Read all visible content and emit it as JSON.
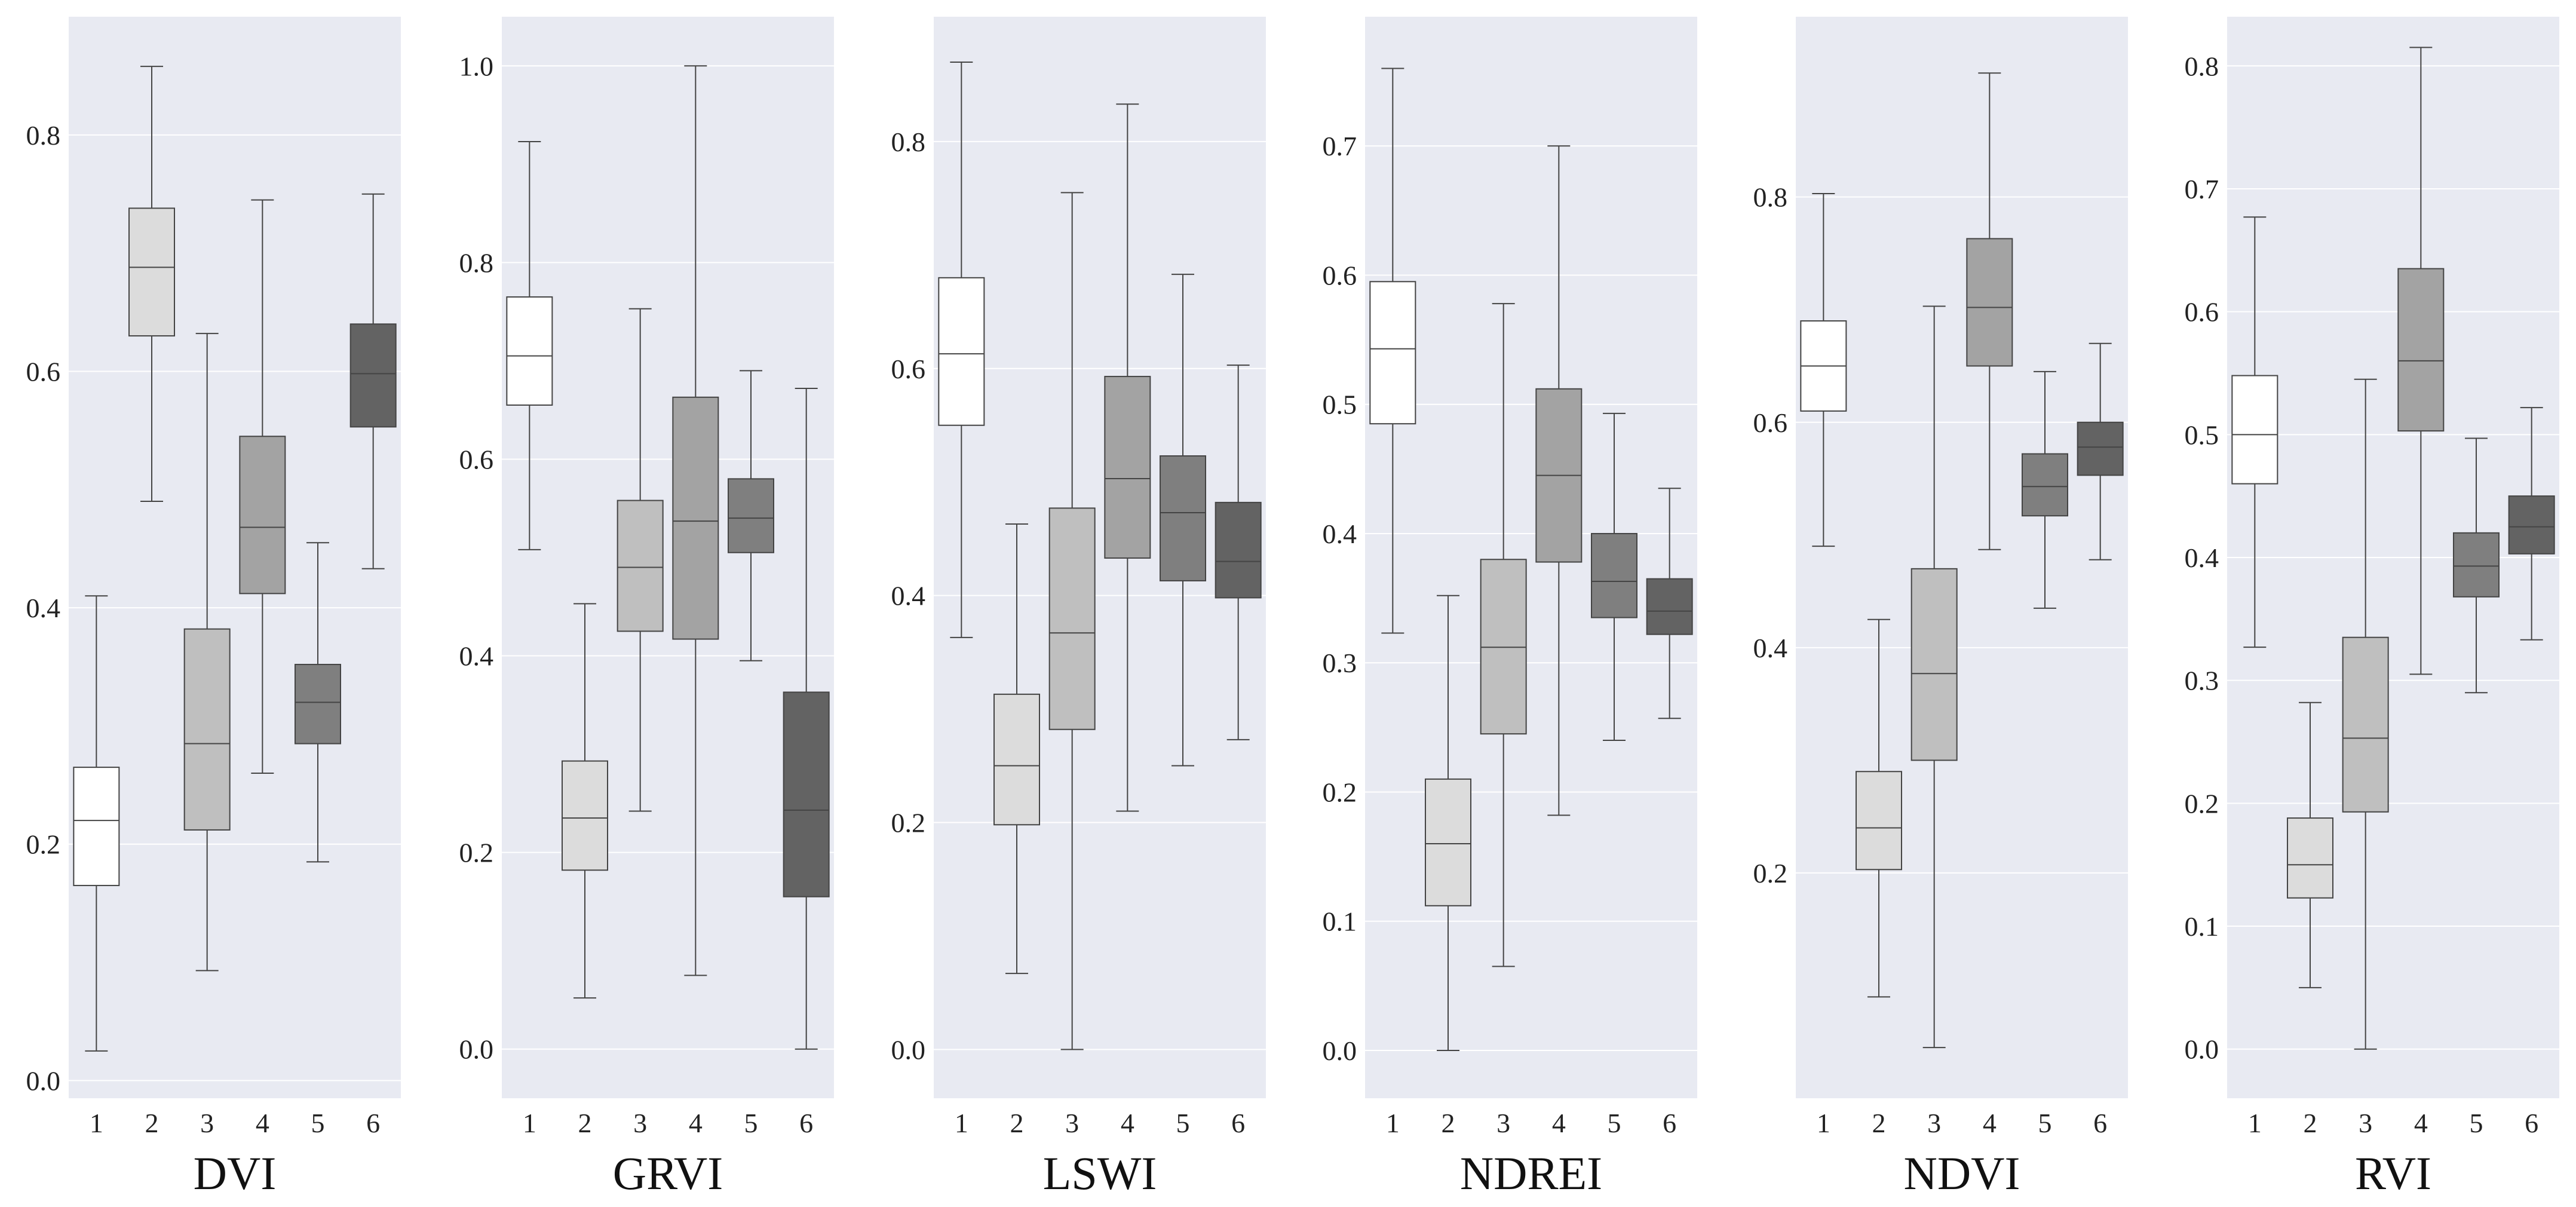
{
  "figure": {
    "background": "#ffffff",
    "panel_background": "#e8eaf2",
    "gridline_color": "#ffffff",
    "whisker_color": "#444444",
    "group_colors": [
      "#ffffff",
      "#dcdcdc",
      "#bfbfbf",
      "#a3a3a3",
      "#7f7f7f",
      "#636363"
    ]
  },
  "chart_data": [
    {
      "type": "box",
      "title": "DVI",
      "categories": [
        "1",
        "2",
        "3",
        "4",
        "5",
        "6"
      ],
      "ylim": [
        -0.015,
        0.9
      ],
      "yticks": [
        0.0,
        0.2,
        0.4,
        0.6,
        0.8
      ],
      "ytick_labels": [
        "0.0",
        "0.2",
        "0.4",
        "0.6",
        "0.8"
      ],
      "boxes": [
        {
          "min": 0.025,
          "q1": 0.165,
          "median": 0.22,
          "q3": 0.265,
          "max": 0.41
        },
        {
          "min": 0.49,
          "q1": 0.63,
          "median": 0.688,
          "q3": 0.738,
          "max": 0.858
        },
        {
          "min": 0.093,
          "q1": 0.212,
          "median": 0.285,
          "q3": 0.382,
          "max": 0.632
        },
        {
          "min": 0.26,
          "q1": 0.412,
          "median": 0.468,
          "q3": 0.545,
          "max": 0.745
        },
        {
          "min": 0.185,
          "q1": 0.285,
          "median": 0.32,
          "q3": 0.352,
          "max": 0.455
        },
        {
          "min": 0.433,
          "q1": 0.553,
          "median": 0.598,
          "q3": 0.64,
          "max": 0.75
        }
      ]
    },
    {
      "type": "box",
      "title": "GRVI",
      "categories": [
        "1",
        "2",
        "3",
        "4",
        "5",
        "6"
      ],
      "ylim": [
        -0.05,
        1.05
      ],
      "yticks": [
        0.0,
        0.2,
        0.4,
        0.6,
        0.8,
        1.0
      ],
      "ytick_labels": [
        "0.0",
        "0.2",
        "0.4",
        "0.6",
        "0.8",
        "1.0"
      ],
      "boxes": [
        {
          "min": 0.508,
          "q1": 0.655,
          "median": 0.705,
          "q3": 0.765,
          "max": 0.923
        },
        {
          "min": 0.052,
          "q1": 0.182,
          "median": 0.235,
          "q3": 0.293,
          "max": 0.453
        },
        {
          "min": 0.242,
          "q1": 0.425,
          "median": 0.49,
          "q3": 0.558,
          "max": 0.753
        },
        {
          "min": 0.075,
          "q1": 0.417,
          "median": 0.537,
          "q3": 0.663,
          "max": 1.0
        },
        {
          "min": 0.395,
          "q1": 0.505,
          "median": 0.54,
          "q3": 0.58,
          "max": 0.69
        },
        {
          "min": 0.0,
          "q1": 0.155,
          "median": 0.243,
          "q3": 0.363,
          "max": 0.672
        }
      ]
    },
    {
      "type": "box",
      "title": "LSWI",
      "categories": [
        "1",
        "2",
        "3",
        "4",
        "5",
        "6"
      ],
      "ylim": [
        -0.043,
        0.91
      ],
      "yticks": [
        0.0,
        0.2,
        0.4,
        0.6,
        0.8
      ],
      "ytick_labels": [
        "0.0",
        "0.2",
        "0.4",
        "0.6",
        "0.8"
      ],
      "boxes": [
        {
          "min": 0.363,
          "q1": 0.55,
          "median": 0.613,
          "q3": 0.68,
          "max": 0.87
        },
        {
          "min": 0.067,
          "q1": 0.198,
          "median": 0.25,
          "q3": 0.313,
          "max": 0.463
        },
        {
          "min": 0.0,
          "q1": 0.282,
          "median": 0.367,
          "q3": 0.477,
          "max": 0.755
        },
        {
          "min": 0.21,
          "q1": 0.433,
          "median": 0.503,
          "q3": 0.593,
          "max": 0.833
        },
        {
          "min": 0.25,
          "q1": 0.413,
          "median": 0.473,
          "q3": 0.523,
          "max": 0.683
        },
        {
          "min": 0.273,
          "q1": 0.398,
          "median": 0.43,
          "q3": 0.482,
          "max": 0.603
        }
      ]
    },
    {
      "type": "box",
      "title": "NDREI",
      "categories": [
        "1",
        "2",
        "3",
        "4",
        "5",
        "6"
      ],
      "ylim": [
        -0.037,
        0.8
      ],
      "yticks": [
        0.0,
        0.1,
        0.2,
        0.3,
        0.4,
        0.5,
        0.6,
        0.7
      ],
      "ytick_labels": [
        "0.0",
        "0.1",
        "0.2",
        "0.3",
        "0.4",
        "0.5",
        "0.6",
        "0.7"
      ],
      "boxes": [
        {
          "min": 0.323,
          "q1": 0.485,
          "median": 0.543,
          "q3": 0.595,
          "max": 0.76
        },
        {
          "min": 0.0,
          "q1": 0.112,
          "median": 0.16,
          "q3": 0.21,
          "max": 0.352
        },
        {
          "min": 0.065,
          "q1": 0.245,
          "median": 0.312,
          "q3": 0.38,
          "max": 0.578
        },
        {
          "min": 0.182,
          "q1": 0.378,
          "median": 0.445,
          "q3": 0.512,
          "max": 0.7
        },
        {
          "min": 0.24,
          "q1": 0.335,
          "median": 0.363,
          "q3": 0.4,
          "max": 0.493
        },
        {
          "min": 0.257,
          "q1": 0.322,
          "median": 0.34,
          "q3": 0.365,
          "max": 0.435
        }
      ]
    },
    {
      "type": "box",
      "title": "NDVI",
      "categories": [
        "1",
        "2",
        "3",
        "4",
        "5",
        "6"
      ],
      "ylim": [
        0.0,
        0.96
      ],
      "yticks": [
        0.2,
        0.4,
        0.6,
        0.8
      ],
      "ytick_labels": [
        "0.2",
        "0.4",
        "0.6",
        "0.8"
      ],
      "boxes": [
        {
          "min": 0.49,
          "q1": 0.61,
          "median": 0.65,
          "q3": 0.69,
          "max": 0.803
        },
        {
          "min": 0.09,
          "q1": 0.203,
          "median": 0.24,
          "q3": 0.29,
          "max": 0.425
        },
        {
          "min": 0.045,
          "q1": 0.3,
          "median": 0.377,
          "q3": 0.47,
          "max": 0.703
        },
        {
          "min": 0.487,
          "q1": 0.65,
          "median": 0.702,
          "q3": 0.763,
          "max": 0.91
        },
        {
          "min": 0.435,
          "q1": 0.517,
          "median": 0.543,
          "q3": 0.572,
          "max": 0.645
        },
        {
          "min": 0.478,
          "q1": 0.553,
          "median": 0.578,
          "q3": 0.6,
          "max": 0.67
        }
      ]
    },
    {
      "type": "box",
      "title": "RVI",
      "categories": [
        "1",
        "2",
        "3",
        "4",
        "5",
        "6"
      ],
      "ylim": [
        -0.04,
        0.84
      ],
      "yticks": [
        0.0,
        0.1,
        0.2,
        0.3,
        0.4,
        0.5,
        0.6,
        0.7,
        0.8
      ],
      "ytick_labels": [
        "0.0",
        "0.1",
        "0.2",
        "0.3",
        "0.4",
        "0.5",
        "0.6",
        "0.7",
        "0.8"
      ],
      "boxes": [
        {
          "min": 0.327,
          "q1": 0.46,
          "median": 0.5,
          "q3": 0.548,
          "max": 0.677
        },
        {
          "min": 0.05,
          "q1": 0.123,
          "median": 0.15,
          "q3": 0.188,
          "max": 0.282
        },
        {
          "min": 0.0,
          "q1": 0.193,
          "median": 0.253,
          "q3": 0.335,
          "max": 0.545
        },
        {
          "min": 0.305,
          "q1": 0.503,
          "median": 0.56,
          "q3": 0.635,
          "max": 0.815
        },
        {
          "min": 0.29,
          "q1": 0.368,
          "median": 0.393,
          "q3": 0.42,
          "max": 0.497
        },
        {
          "min": 0.333,
          "q1": 0.403,
          "median": 0.425,
          "q3": 0.45,
          "max": 0.522
        }
      ]
    }
  ]
}
